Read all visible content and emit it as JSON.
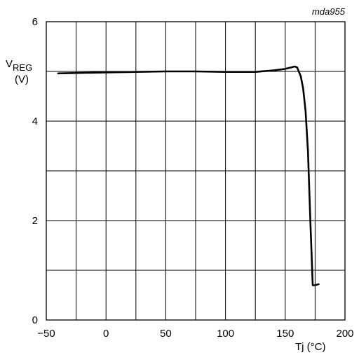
{
  "chart_data": {
    "type": "line",
    "code": "mda955",
    "ylabel_main": "V",
    "ylabel_sub": "REG",
    "ylabel_unit": "(V)",
    "xlabel": "Tj (°C)",
    "xlim": [
      -50,
      200
    ],
    "ylim": [
      0,
      6
    ],
    "x_ticks": [
      -50,
      0,
      50,
      100,
      150,
      200
    ],
    "x_tick_labels": [
      "−50",
      "0",
      "50",
      "100",
      "150",
      "200"
    ],
    "x_grid": [
      -50,
      -25,
      0,
      25,
      50,
      75,
      100,
      125,
      150,
      175,
      200
    ],
    "y_ticks": [
      0,
      2,
      4,
      6
    ],
    "y_tick_labels": [
      "0",
      "2",
      "4",
      "6"
    ],
    "y_grid": [
      0,
      1,
      2,
      3,
      4,
      5,
      6
    ],
    "grid": true,
    "series": [
      {
        "x": [
          -40,
          -20,
          0,
          25,
          50,
          75,
          100,
          125,
          140,
          150,
          155,
          158,
          160,
          163,
          165,
          167,
          169,
          171,
          173,
          175,
          178
        ],
        "y": [
          4.96,
          4.97,
          4.98,
          4.99,
          5.0,
          5.0,
          4.99,
          4.99,
          5.02,
          5.05,
          5.08,
          5.1,
          5.08,
          4.9,
          4.65,
          4.2,
          3.4,
          2.0,
          0.7,
          0.7,
          0.72
        ]
      }
    ],
    "colors": {
      "line": "#000000",
      "grid": "#000000"
    }
  }
}
